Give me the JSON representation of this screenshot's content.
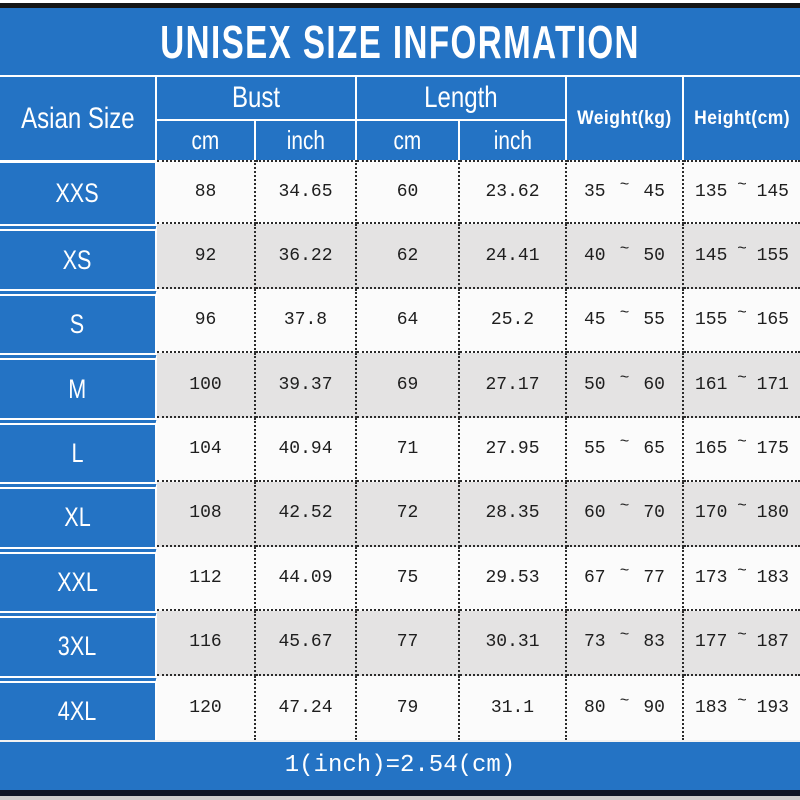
{
  "title": "UNISEX SIZE INFORMATION",
  "header": {
    "size_column": "Asian Size",
    "bust": {
      "label": "Bust",
      "units": [
        "cm",
        "inch"
      ]
    },
    "length": {
      "label": "Length",
      "units": [
        "cm",
        "inch"
      ]
    },
    "weight": "Weight(kg)",
    "height": "Height(cm)"
  },
  "tilde": "~",
  "rows": [
    {
      "size": "XXS",
      "bust_cm": "88",
      "bust_inch": "34.65",
      "length_cm": "60",
      "length_inch": "23.62",
      "weight_min": "35",
      "weight_max": "45",
      "height_min": "135",
      "height_max": "145"
    },
    {
      "size": "XS",
      "bust_cm": "92",
      "bust_inch": "36.22",
      "length_cm": "62",
      "length_inch": "24.41",
      "weight_min": "40",
      "weight_max": "50",
      "height_min": "145",
      "height_max": "155"
    },
    {
      "size": "S",
      "bust_cm": "96",
      "bust_inch": "37.8",
      "length_cm": "64",
      "length_inch": "25.2",
      "weight_min": "45",
      "weight_max": "55",
      "height_min": "155",
      "height_max": "165"
    },
    {
      "size": "M",
      "bust_cm": "100",
      "bust_inch": "39.37",
      "length_cm": "69",
      "length_inch": "27.17",
      "weight_min": "50",
      "weight_max": "60",
      "height_min": "161",
      "height_max": "171"
    },
    {
      "size": "L",
      "bust_cm": "104",
      "bust_inch": "40.94",
      "length_cm": "71",
      "length_inch": "27.95",
      "weight_min": "55",
      "weight_max": "65",
      "height_min": "165",
      "height_max": "175"
    },
    {
      "size": "XL",
      "bust_cm": "108",
      "bust_inch": "42.52",
      "length_cm": "72",
      "length_inch": "28.35",
      "weight_min": "60",
      "weight_max": "70",
      "height_min": "170",
      "height_max": "180"
    },
    {
      "size": "XXL",
      "bust_cm": "112",
      "bust_inch": "44.09",
      "length_cm": "75",
      "length_inch": "29.53",
      "weight_min": "67",
      "weight_max": "77",
      "height_min": "173",
      "height_max": "183"
    },
    {
      "size": "3XL",
      "bust_cm": "116",
      "bust_inch": "45.67",
      "length_cm": "77",
      "length_inch": "30.31",
      "weight_min": "73",
      "weight_max": "83",
      "height_min": "177",
      "height_max": "187"
    },
    {
      "size": "4XL",
      "bust_cm": "120",
      "bust_inch": "47.24",
      "length_cm": "79",
      "length_inch": "31.1",
      "weight_min": "80",
      "weight_max": "90",
      "height_min": "183",
      "height_max": "193"
    }
  ],
  "footer_note": "1(inch)=2.54(cm)",
  "colors": {
    "accent_blue": "#2473c4",
    "row_base": "#fbfbfb",
    "row_alt": "#e4e3e3",
    "dotted_border": "#2b2b2b",
    "top_bar": "#161616",
    "bottom_bar": "#0e1526"
  },
  "chart_data": {
    "type": "table",
    "title": "UNISEX SIZE INFORMATION",
    "columns": [
      "Asian Size",
      "Bust cm",
      "Bust inch",
      "Length cm",
      "Length inch",
      "Weight(kg)",
      "Height(cm)"
    ],
    "rows": [
      [
        "XXS",
        88,
        34.65,
        60,
        23.62,
        "35~45",
        "135~145"
      ],
      [
        "XS",
        92,
        36.22,
        62,
        24.41,
        "40~50",
        "145~155"
      ],
      [
        "S",
        96,
        37.8,
        64,
        25.2,
        "45~55",
        "155~165"
      ],
      [
        "M",
        100,
        39.37,
        69,
        27.17,
        "50~60",
        "161~171"
      ],
      [
        "L",
        104,
        40.94,
        71,
        27.95,
        "55~65",
        "165~175"
      ],
      [
        "XL",
        108,
        42.52,
        72,
        28.35,
        "60~70",
        "170~180"
      ],
      [
        "XXL",
        112,
        44.09,
        75,
        29.53,
        "67~77",
        "173~183"
      ],
      [
        "3XL",
        116,
        45.67,
        77,
        30.31,
        "73~83",
        "177~187"
      ],
      [
        "4XL",
        120,
        47.24,
        79,
        31.1,
        "80~90",
        "183~193"
      ]
    ],
    "note": "1(inch)=2.54(cm)"
  }
}
